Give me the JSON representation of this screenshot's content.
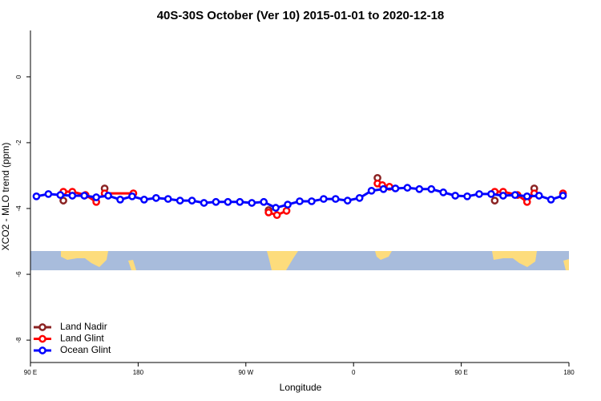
{
  "chart_data": {
    "type": "line",
    "title": "40S-30S October (Ver 10)   2015-01-01 to 2020-12-18",
    "x_label": "Longitude",
    "y_label": "XCO2 - MLO trend (ppm)",
    "xlim": [
      90,
      540
    ],
    "xticks": [
      {
        "value": 90,
        "label": "90 E"
      },
      180,
      {
        "value": 270,
        "label": "90 W"
      },
      {
        "value": 360,
        "label": "0"
      },
      {
        "value": 450,
        "label": "90 E"
      },
      {
        "value": 540,
        "label": "180"
      }
    ],
    "ylim": [
      -8.68,
      1.41
    ],
    "yticks": [
      0,
      -2,
      -4,
      -6,
      -8
    ],
    "legend": "bottom-left",
    "series": [
      {
        "name": "Land Nadir",
        "color": "#8b2323",
        "x": [
          117.5,
          null,
          152,
          null,
          289,
          null,
          380,
          null,
          478,
          null,
          511
        ],
        "values": [
          -3.76,
          null,
          -3.39,
          null,
          -4.05,
          null,
          -3.07,
          null,
          -3.76,
          null,
          -3.39
        ]
      },
      {
        "name": "Land Glint",
        "color": "#ff0000",
        "x": [
          117.5,
          125,
          136,
          145,
          null,
          152,
          176,
          null,
          289,
          296,
          304,
          null,
          380,
          384,
          390,
          null,
          478,
          485,
          497,
          505,
          511,
          null,
          535
        ],
        "values": [
          -3.49,
          -3.49,
          -3.59,
          -3.8,
          null,
          -3.54,
          -3.54,
          null,
          -4.12,
          -4.2,
          -4.07,
          null,
          -3.24,
          -3.29,
          -3.34,
          null,
          -3.49,
          -3.49,
          -3.59,
          -3.8,
          -3.54,
          null,
          -3.54
        ]
      },
      {
        "name": "Ocean Glint",
        "color": "#0000ff",
        "x": [
          95,
          105,
          115,
          125,
          135,
          145,
          155,
          165,
          175,
          185,
          195,
          205,
          215,
          225,
          235,
          245,
          255,
          265,
          275,
          285,
          295,
          305,
          315,
          325,
          335,
          345,
          355,
          365,
          375,
          385,
          395,
          405,
          415,
          425,
          435,
          445,
          455,
          465,
          475,
          485,
          495,
          505,
          515,
          525,
          535
        ],
        "values": [
          -3.63,
          -3.56,
          -3.59,
          -3.61,
          -3.61,
          -3.66,
          -3.61,
          -3.73,
          -3.63,
          -3.73,
          -3.68,
          -3.71,
          -3.76,
          -3.76,
          -3.83,
          -3.8,
          -3.8,
          -3.8,
          -3.83,
          -3.8,
          -3.98,
          -3.88,
          -3.78,
          -3.78,
          -3.71,
          -3.71,
          -3.76,
          -3.68,
          -3.46,
          -3.41,
          -3.39,
          -3.37,
          -3.41,
          -3.41,
          -3.51,
          -3.61,
          -3.63,
          -3.56,
          -3.56,
          -3.61,
          -3.59,
          -3.63,
          -3.61,
          -3.73,
          -3.61
        ]
      }
    ]
  }
}
